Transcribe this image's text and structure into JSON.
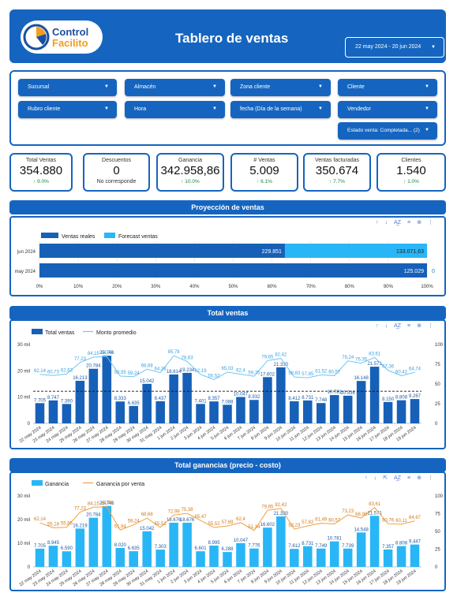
{
  "header": {
    "logo_line1": "Control",
    "logo_line2": "Facilito",
    "title": "Tablero de ventas",
    "date_range": "22 may 2024 - 20 jun 2024"
  },
  "filters": [
    {
      "label": "Sucursal"
    },
    {
      "label": "Almacén"
    },
    {
      "label": "Zona cliente"
    },
    {
      "label": "Cliente"
    },
    {
      "label": "Rubro cliente"
    },
    {
      "label": "Hora"
    },
    {
      "label": "fecha (Día de la semana)"
    },
    {
      "label": "Vendedor"
    },
    {
      "label": "Estado venta: Completada... (2)"
    }
  ],
  "kpis": [
    {
      "label": "Total Ventas",
      "value": "354.880",
      "delta": "↑ 9.0%"
    },
    {
      "label": "Descuentos",
      "value": "0",
      "sub": "No corresponde"
    },
    {
      "label": "Ganancia",
      "value": "342.958,86",
      "delta": "↑ 10.0%"
    },
    {
      "label": "# Ventas",
      "value": "5.009",
      "delta": "↑ 6.1%"
    },
    {
      "label": "Ventas facturadas",
      "value": "350.674",
      "delta": "↑ 7.7%"
    },
    {
      "label": "Clientes",
      "value": "1.540",
      "delta": "↑ 1.0%"
    }
  ],
  "sections": {
    "projection": "Proyección de ventas",
    "total_sales": "Total ventas",
    "total_profit": "Total ganancias (precio - costo)"
  },
  "colors": {
    "primary": "#1565c0",
    "dark_bar": "#1760b8",
    "light_blue": "#29b6f6",
    "line_light": "#6ec6f5",
    "orange": "#f0a040"
  },
  "chart_data": [
    {
      "type": "bar",
      "title": "Proyección de ventas",
      "orientation": "horizontal",
      "stacked": "percent",
      "categories": [
        "jun 2024",
        "may 2024"
      ],
      "series": [
        {
          "name": "Ventas reales",
          "values": [
            229851,
            125029
          ],
          "labels": [
            "229.851",
            "125.029"
          ]
        },
        {
          "name": "Forecast ventas",
          "values": [
            133071.63,
            0
          ],
          "labels": [
            "133.071,63",
            "0"
          ]
        }
      ],
      "x_ticks": [
        "0%",
        "10%",
        "20%",
        "30%",
        "40%",
        "50%",
        "60%",
        "70%",
        "80%",
        "90%",
        "100%"
      ],
      "legend": "top-left"
    },
    {
      "type": "bar",
      "title": "Total ventas",
      "categories": [
        "22 may 2024",
        "23 may 2024",
        "24 may 2024",
        "25 may 2024",
        "26 may 2024",
        "27 may 2024",
        "28 may 2024",
        "29 may 2024",
        "30 may 2024",
        "31 may 2024",
        "1 jun 2024",
        "2 jun 2024",
        "3 jun 2024",
        "4 jun 2024",
        "5 jun 2024",
        "6 jun 2024",
        "7 jun 2024",
        "8 jun 2024",
        "9 jun 2024",
        "10 jun 2024",
        "11 jun 2024",
        "12 jun 2024",
        "13 jun 2024",
        "14 jun 2024",
        "15 jun 2024",
        "16 jun 2024",
        "17 jun 2024",
        "18 jun 2024",
        "19 jun 2024"
      ],
      "series": [
        {
          "name": "Total ventas",
          "axis": "left",
          "values": [
            7705,
            8747,
            7390,
            16213,
            20784,
            25746,
            8333,
            6635,
            15042,
            8437,
            18614,
            19234,
            7401,
            8357,
            7088,
            10047,
            8932,
            17602,
            21330,
            8412,
            8731,
            7748,
            10781,
            10536,
            16148,
            21571,
            8150,
            8808,
            9267
          ],
          "labels": [
            "7.705",
            "8.747",
            "7.390",
            "16.213",
            "20.784",
            "25.746",
            "8.333",
            "6.635",
            "15.042",
            "8.437",
            "18.614",
            "19.234",
            "7.401",
            "8.357",
            "7.088",
            "10.047",
            "8.932",
            "17.602",
            "21.330",
            "8.412",
            "8.731",
            "7.748",
            "10.781",
            "10.536",
            "16.148",
            "21.571",
            "8.150",
            "8.808",
            "9.267"
          ]
        },
        {
          "name": "Monto promedio",
          "axis": "right",
          "values": [
            62.14,
            60.73,
            62.63,
            77.23,
            84.15,
            84.78,
            59.95,
            59.24,
            68.68,
            64.38,
            85.78,
            78.63,
            62.19,
            55.52,
            65.03,
            62.4,
            59.75,
            79.65,
            82.42,
            58.83,
            57.85,
            61.52,
            60.57,
            79.24,
            76.35,
            83.61,
            67.36,
            60.42,
            64.74
          ],
          "labels": [
            "62,14",
            "60,73",
            "62,63",
            "77,23",
            "84,15",
            "84,78",
            "59,95",
            "59,24",
            "68,68",
            "64,38",
            "85,78",
            "78,63",
            "62,19",
            "55,52",
            "65,03",
            "62,4",
            "59,75",
            "79,65",
            "82,42",
            "58,83",
            "57,85",
            "61,52",
            "60,57",
            "79,24",
            "76,35",
            "83,61",
            "67,36",
            "60,42",
            "64,74"
          ]
        }
      ],
      "y_ticks_left": [
        "0",
        "10 mil",
        "20 mil",
        "30 mil"
      ],
      "y_ticks_right": [
        "0",
        "25",
        "50",
        "75",
        "100"
      ],
      "ylim_left": [
        0,
        30000
      ],
      "ylim_right": [
        0,
        100
      ],
      "reference_line": 12237,
      "legend": "top-left"
    },
    {
      "type": "bar",
      "title": "Total ganancias (precio - costo)",
      "categories": [
        "22 may 2024",
        "23 may 2024",
        "24 may 2024",
        "25 may 2024",
        "26 may 2024",
        "27 may 2024",
        "28 may 2024",
        "29 may 2024",
        "30 may 2024",
        "31 may 2024",
        "1 jun 2024",
        "2 jun 2024",
        "3 jun 2024",
        "4 jun 2024",
        "5 jun 2024",
        "6 jun 2024",
        "7 jun 2024",
        "8 jun 2024",
        "9 jun 2024",
        "10 jun 2024",
        "11 jun 2024",
        "12 jun 2024",
        "13 jun 2024",
        "14 jun 2024",
        "15 jun 2024",
        "16 jun 2024",
        "17 jun 2024",
        "18 jun 2024",
        "19 jun 2024"
      ],
      "series": [
        {
          "name": "Ganancia",
          "axis": "left",
          "values": [
            7705,
            8945,
            6590,
            16219,
            20784,
            25746,
            8020,
            6635,
            15042,
            7303,
            18676,
            18676,
            6601,
            8995,
            6288,
            10047,
            7776,
            16602,
            21330,
            7612,
            8731,
            7749,
            10781,
            7739,
            14548,
            21571,
            7357,
            8808,
            9447
          ],
          "labels": [
            "7.705",
            "8.945",
            "6.590",
            "16.219",
            "20.784",
            "25.746",
            "8.020",
            "6.635",
            "15.042",
            "7.303",
            "18.676",
            "18.676",
            "6.601",
            "8.995",
            "6.288",
            "10.047",
            "7.776",
            "16.602",
            "21.330",
            "7.612",
            "8.731",
            "7.749",
            "10.781",
            "7.739",
            "14.548",
            "21.571",
            "7.357",
            "8.808",
            "9.447"
          ]
        },
        {
          "name": "Ganancia por venta",
          "axis": "right",
          "values": [
            62.14,
            55.18,
            55.85,
            77.23,
            84.15,
            84.78,
            51.94,
            59.24,
            68.68,
            55.51,
            72.99,
            75.38,
            65.47,
            55.52,
            57.69,
            62.4,
            51.34,
            79.65,
            82.42,
            53.23,
            57.82,
            61.49,
            60.57,
            73.23,
            68.99,
            83.61,
            60.76,
            60.11,
            64.67
          ],
          "labels": [
            "62,14",
            "55,18",
            "55,85",
            "77,23",
            "84,15",
            "84,78",
            "51,94",
            "59,24",
            "68,68",
            "55,51",
            "72,99",
            "75,38",
            "65,47",
            "55,52",
            "57,69",
            "62,4",
            "51,34",
            "79,65",
            "82,42",
            "53,23",
            "57,82",
            "61,49",
            "60,57",
            "73,23",
            "68,99",
            "83,61",
            "60,76",
            "60,11",
            "64,67"
          ]
        }
      ],
      "y_ticks_left": [
        "0",
        "10 mil",
        "20 mil",
        "30 mil"
      ],
      "y_ticks_right": [
        "0",
        "25",
        "50",
        "75",
        "100"
      ],
      "ylim_left": [
        0,
        30000
      ],
      "ylim_right": [
        0,
        100
      ],
      "legend": "top-left"
    }
  ]
}
